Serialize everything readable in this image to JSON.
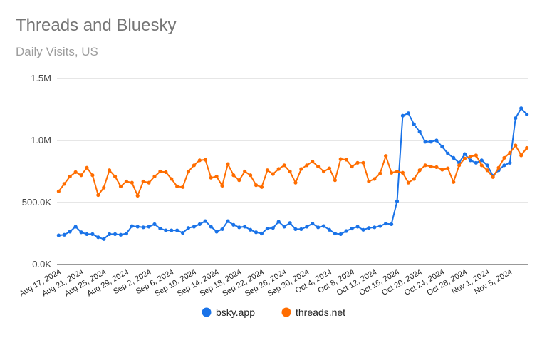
{
  "chart_data": {
    "type": "line",
    "title": "Threads and Bluesky",
    "subtitle": "Daily Visits, US",
    "xlabel": "",
    "ylabel": "",
    "ylim": [
      0,
      1500000
    ],
    "yticks": [
      {
        "value": 0,
        "label": "0.0K"
      },
      {
        "value": 500000,
        "label": "500.0K"
      },
      {
        "value": 1000000,
        "label": "1.0M"
      },
      {
        "value": 1500000,
        "label": "1.5M"
      }
    ],
    "start_date": "2024-08-17",
    "xtick_labels": [
      "Aug 17, 2024",
      "Aug 21, 2024",
      "Aug 25, 2024",
      "Aug 29, 2024",
      "Sep 2, 2024",
      "Sep 6, 2024",
      "Sep 10, 2024",
      "Sep 14, 2024",
      "Sep 18, 2024",
      "Sep 22, 2024",
      "Sep 26, 2024",
      "Sep 30, 2024",
      "Oct 4, 2024",
      "Oct 8, 2024",
      "Oct 12, 2024",
      "Oct 16, 2024",
      "Oct 20, 2024",
      "Oct 24, 2024",
      "Oct 28, 2024",
      "Nov 1, 2024",
      "Nov 5, 2024"
    ],
    "grid": true,
    "legend_position": "bottom",
    "series": [
      {
        "name": "bsky.app",
        "color": "#1a73e8",
        "values": [
          235000,
          240000,
          265000,
          305000,
          260000,
          245000,
          245000,
          220000,
          205000,
          245000,
          245000,
          240000,
          250000,
          310000,
          305000,
          300000,
          305000,
          325000,
          290000,
          275000,
          275000,
          275000,
          255000,
          295000,
          305000,
          325000,
          350000,
          305000,
          265000,
          285000,
          350000,
          320000,
          300000,
          305000,
          280000,
          260000,
          250000,
          290000,
          295000,
          345000,
          305000,
          335000,
          285000,
          285000,
          305000,
          330000,
          300000,
          310000,
          280000,
          250000,
          245000,
          270000,
          290000,
          305000,
          280000,
          295000,
          300000,
          310000,
          330000,
          325000,
          510000,
          1200000,
          1220000,
          1130000,
          1070000,
          990000,
          990000,
          1000000,
          950000,
          895000,
          860000,
          820000,
          890000,
          840000,
          820000,
          840000,
          800000,
          715000,
          760000,
          800000,
          820000,
          1180000,
          1260000,
          1210000
        ]
      },
      {
        "name": "threads.net",
        "color": "#ff6d00",
        "values": [
          590000,
          650000,
          710000,
          745000,
          720000,
          780000,
          720000,
          560000,
          620000,
          760000,
          710000,
          630000,
          670000,
          660000,
          555000,
          670000,
          660000,
          710000,
          750000,
          745000,
          690000,
          630000,
          625000,
          750000,
          800000,
          840000,
          845000,
          700000,
          710000,
          635000,
          810000,
          720000,
          680000,
          750000,
          720000,
          640000,
          625000,
          760000,
          730000,
          770000,
          800000,
          750000,
          660000,
          770000,
          800000,
          830000,
          790000,
          750000,
          775000,
          680000,
          850000,
          845000,
          790000,
          820000,
          820000,
          670000,
          690000,
          735000,
          875000,
          740000,
          750000,
          740000,
          660000,
          690000,
          760000,
          800000,
          790000,
          785000,
          765000,
          775000,
          665000,
          800000,
          855000,
          870000,
          880000,
          800000,
          760000,
          705000,
          780000,
          860000,
          900000,
          960000,
          880000,
          940000
        ]
      }
    ]
  }
}
